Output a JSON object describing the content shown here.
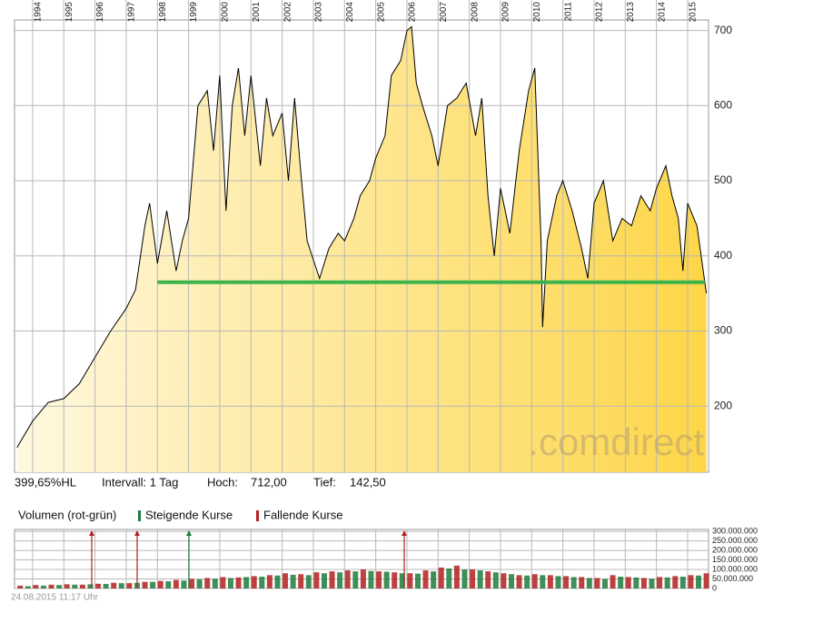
{
  "chart_data": {
    "type": "area-line",
    "x": [
      1993.5,
      1994.0,
      1994.5,
      1995.0,
      1995.5,
      1996.0,
      1996.5,
      1997.0,
      1997.3,
      1997.6,
      1997.75,
      1998.0,
      1998.3,
      1998.6,
      1998.8,
      1999.0,
      1999.3,
      1999.6,
      1999.8,
      2000.0,
      2000.2,
      2000.4,
      2000.6,
      2000.8,
      2001.0,
      2001.3,
      2001.5,
      2001.7,
      2002.0,
      2002.2,
      2002.4,
      2002.6,
      2002.8,
      2003.0,
      2003.2,
      2003.5,
      2003.8,
      2004.0,
      2004.3,
      2004.5,
      2004.8,
      2005.0,
      2005.3,
      2005.5,
      2005.8,
      2006.0,
      2006.15,
      2006.3,
      2006.5,
      2006.8,
      2007.0,
      2007.3,
      2007.6,
      2007.9,
      2008.2,
      2008.4,
      2008.6,
      2008.8,
      2009.0,
      2009.3,
      2009.6,
      2009.9,
      2010.1,
      2010.3,
      2010.35,
      2010.5,
      2010.8,
      2011.0,
      2011.3,
      2011.6,
      2011.8,
      2012.0,
      2012.3,
      2012.6,
      2012.9,
      2013.2,
      2013.5,
      2013.8,
      2014.0,
      2014.3,
      2014.5,
      2014.7,
      2014.85,
      2015.0,
      2015.3,
      2015.6
    ],
    "values": [
      145,
      180,
      205,
      210,
      230,
      265,
      300,
      330,
      355,
      440,
      470,
      390,
      460,
      380,
      420,
      450,
      600,
      620,
      540,
      640,
      460,
      600,
      650,
      560,
      640,
      520,
      610,
      560,
      590,
      500,
      610,
      510,
      420,
      395,
      370,
      410,
      430,
      420,
      450,
      480,
      500,
      530,
      560,
      640,
      660,
      700,
      705,
      630,
      600,
      560,
      520,
      600,
      610,
      630,
      560,
      610,
      480,
      400,
      490,
      430,
      540,
      620,
      650,
      420,
      305,
      420,
      480,
      500,
      460,
      410,
      370,
      470,
      500,
      420,
      450,
      440,
      480,
      460,
      490,
      520,
      480,
      450,
      380,
      470,
      440,
      350
    ],
    "color": "#000000",
    "fill_colors": [
      "#fff8e0",
      "#fdd648"
    ],
    "xlim": [
      1993.42,
      2015.67
    ],
    "xticks": [
      1994,
      1995,
      1996,
      1997,
      1998,
      1999,
      2000,
      2001,
      2002,
      2003,
      2004,
      2005,
      2006,
      2007,
      2008,
      2009,
      2010,
      2011,
      2012,
      2013,
      2014,
      2015
    ],
    "ylim": [
      112,
      714
    ],
    "yticks": [
      200,
      300,
      400,
      500,
      600,
      700
    ],
    "grid": true,
    "support_line": {
      "value": 365,
      "x": [
        1998.0,
        2015.55
      ],
      "color": "#3cb44b"
    },
    "watermark": ".comdirect",
    "info": {
      "range": "399,65%HL",
      "interval": "Intervall: 1 Tag",
      "high_label": "Hoch:",
      "high": "712,00",
      "low_label": "Tief:",
      "low": "142,50"
    },
    "volume": {
      "title": "Volumen (rot-grün)",
      "ylim": [
        0,
        310000000
      ],
      "yticks": [
        {
          "value": 0,
          "label": "0"
        },
        {
          "value": 50000000,
          "label": "50.000.000"
        },
        {
          "value": 100000000,
          "label": "100.000.000"
        },
        {
          "value": 150000000,
          "label": "150.000.000"
        },
        {
          "value": 200000000,
          "label": "200.000.000"
        },
        {
          "value": 250000000,
          "label": "250.000.000"
        },
        {
          "value": 300000000,
          "label": "300.000.000"
        }
      ],
      "series": [
        {
          "name": "Steigende Kurse",
          "color": "#1e7b3c",
          "x": [
            1993.85,
            1994.35,
            1994.85,
            1995.35,
            1995.85,
            1996.35,
            1996.85,
            1997.35,
            1997.85,
            1998.35,
            1998.85,
            1999.35,
            1999.85,
            2000.35,
            2000.85,
            2001.35,
            2001.85,
            2002.35,
            2002.85,
            2003.35,
            2003.85,
            2004.35,
            2004.85,
            2005.35,
            2005.85,
            2006.35,
            2006.85,
            2007.35,
            2007.85,
            2008.35,
            2008.85,
            2009.35,
            2009.85,
            2010.35,
            2010.85,
            2011.35,
            2011.85,
            2012.35,
            2012.85,
            2013.35,
            2013.85,
            2014.35,
            2014.85,
            2015.35
          ],
          "values": [
            12000000,
            15000000,
            18000000,
            20000000,
            22000000,
            24000000,
            28000000,
            30000000,
            35000000,
            38000000,
            42000000,
            48000000,
            52000000,
            55000000,
            60000000,
            62000000,
            68000000,
            72000000,
            70000000,
            80000000,
            85000000,
            90000000,
            92000000,
            88000000,
            80000000,
            78000000,
            90000000,
            105000000,
            100000000,
            95000000,
            85000000,
            75000000,
            68000000,
            70000000,
            65000000,
            60000000,
            55000000,
            50000000,
            62000000,
            58000000,
            52000000,
            58000000,
            62000000,
            68000000
          ]
        },
        {
          "name": "Fallende Kurse",
          "color": "#b3201f",
          "x": [
            1993.6,
            1994.1,
            1994.6,
            1995.1,
            1995.6,
            1996.1,
            1996.6,
            1997.1,
            1997.6,
            1998.1,
            1998.6,
            1999.1,
            1999.6,
            2000.1,
            2000.6,
            2001.1,
            2001.6,
            2002.1,
            2002.6,
            2003.1,
            2003.6,
            2004.1,
            2004.6,
            2005.1,
            2005.6,
            2006.1,
            2006.6,
            2007.1,
            2007.6,
            2008.1,
            2008.6,
            2009.1,
            2009.6,
            2010.1,
            2010.6,
            2011.1,
            2011.6,
            2012.1,
            2012.6,
            2013.1,
            2013.6,
            2014.1,
            2014.6,
            2015.1,
            2015.6
          ],
          "values": [
            15000000,
            18000000,
            20000000,
            22000000,
            20000000,
            25000000,
            30000000,
            28000000,
            35000000,
            40000000,
            45000000,
            50000000,
            55000000,
            60000000,
            58000000,
            65000000,
            70000000,
            80000000,
            75000000,
            85000000,
            90000000,
            95000000,
            100000000,
            90000000,
            85000000,
            80000000,
            95000000,
            110000000,
            120000000,
            100000000,
            90000000,
            80000000,
            70000000,
            75000000,
            70000000,
            65000000,
            60000000,
            55000000,
            70000000,
            60000000,
            55000000,
            60000000,
            65000000,
            70000000,
            80000000
          ]
        }
      ]
    },
    "timestamp": "24.08.2015 11:17 Uhr"
  }
}
